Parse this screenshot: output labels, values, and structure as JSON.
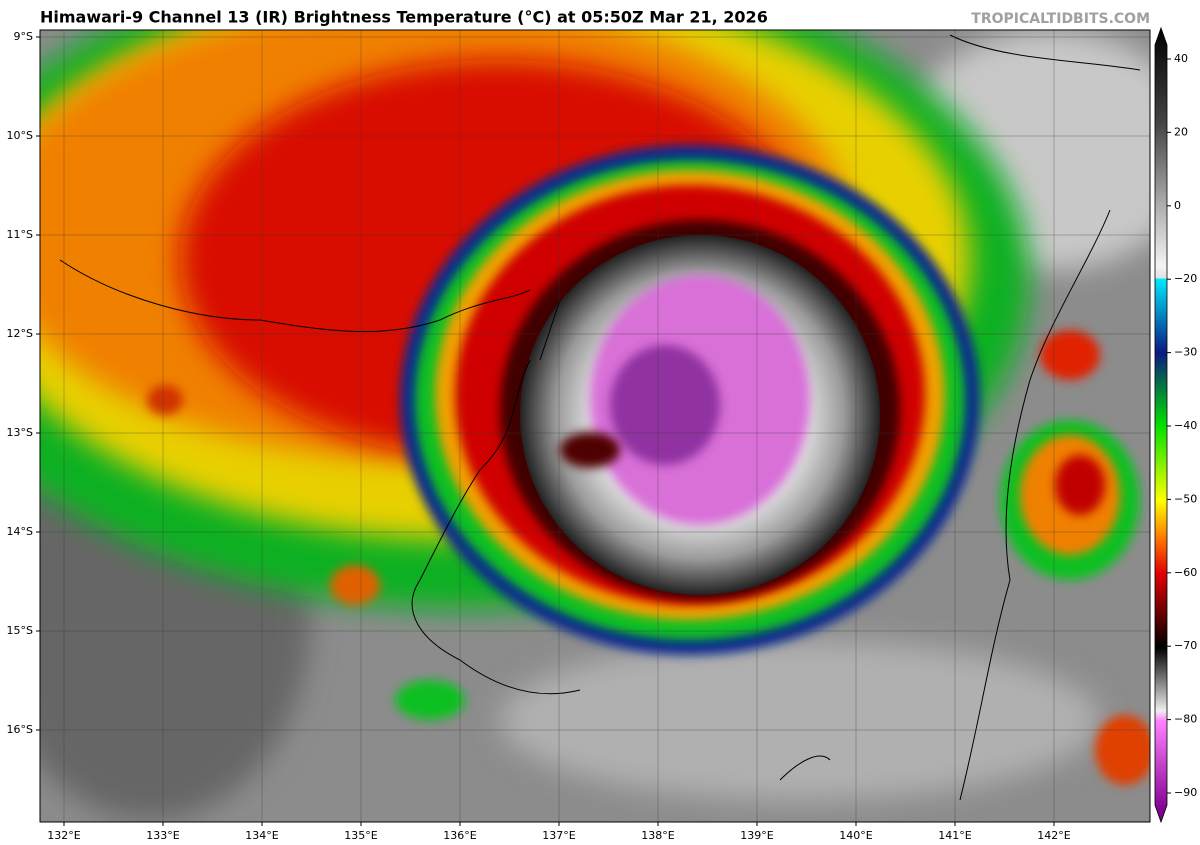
{
  "header": {
    "title": "Himawari-9 Channel 13 (IR) Brightness Temperature (°C) at 05:50Z Mar 21, 2026",
    "watermark": "TROPICALTIDBITS.COM"
  },
  "map": {
    "lat_labels": [
      "9°S",
      "10°S",
      "11°S",
      "12°S",
      "13°S",
      "14°S",
      "15°S",
      "16°S"
    ],
    "lon_labels": [
      "132°E",
      "133°E",
      "134°E",
      "135°E",
      "136°E",
      "137°E",
      "138°E",
      "139°E",
      "140°E",
      "141°E",
      "142°E"
    ]
  },
  "colorbar": {
    "ticks": [
      40,
      20,
      0,
      {
        "value": -20,
        "label": "−20"
      },
      {
        "value": -30,
        "label": "−30"
      },
      {
        "value": -40,
        "label": "−40"
      },
      {
        "value": -50,
        "label": "−50"
      },
      {
        "value": -60,
        "label": "−60"
      },
      {
        "value": -70,
        "label": "−70"
      },
      {
        "value": -80,
        "label": "−80"
      },
      {
        "value": -90,
        "label": "−90"
      }
    ]
  }
}
